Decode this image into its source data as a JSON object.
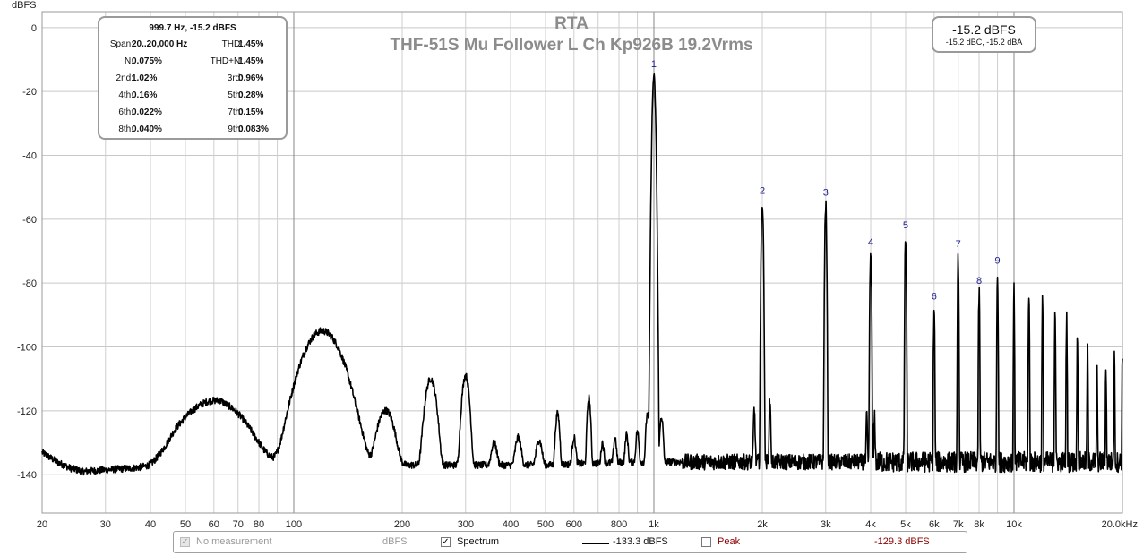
{
  "chart_data": {
    "type": "line",
    "title": "RTA",
    "subtitle": "THF-51S Mu Follower L Ch Kp926B 19.2Vrms",
    "ylabel": "dBFS",
    "xlabel": "",
    "x_scale": "log",
    "xlim": [
      20,
      20000
    ],
    "ylim": [
      -152,
      5
    ],
    "y_ticks": [
      0,
      -20,
      -40,
      -60,
      -80,
      -100,
      -120,
      -140
    ],
    "y_tick_labels": [
      "0",
      "-20",
      "-40",
      "-60",
      "-80",
      "-100",
      "-120",
      "-140"
    ],
    "x_ticks": [
      20,
      30,
      40,
      50,
      60,
      70,
      80,
      100,
      200,
      300,
      400,
      500,
      600,
      800,
      1000,
      2000,
      3000,
      4000,
      5000,
      6000,
      7000,
      8000,
      10000,
      20000
    ],
    "x_tick_labels": [
      "20",
      "30",
      "40",
      "50",
      "60",
      "70",
      "80",
      "100",
      "200",
      "300",
      "400",
      "500",
      "600",
      "800",
      "1k",
      "2k",
      "3k",
      "4k",
      "5k",
      "6k",
      "7k",
      "8k",
      "10k",
      "20.0kHz"
    ],
    "grid": true,
    "series": [
      {
        "name": "Spectrum",
        "color": "#000000",
        "noise_floor": [
          [
            20,
            -133
          ],
          [
            22,
            -136
          ],
          [
            24,
            -138
          ],
          [
            26,
            -139
          ],
          [
            30,
            -138.5
          ],
          [
            35,
            -138
          ],
          [
            40,
            -137.5
          ],
          [
            44,
            -135
          ],
          [
            47,
            -131
          ],
          [
            50,
            -131
          ],
          [
            53,
            -135
          ],
          [
            56,
            -134
          ],
          [
            63,
            -127
          ],
          [
            65,
            -137
          ],
          [
            70,
            -137.5
          ],
          [
            80,
            -137
          ],
          [
            88,
            -136
          ],
          [
            92,
            -134
          ],
          [
            95,
            -131
          ],
          [
            100,
            -133
          ],
          [
            105,
            -136
          ],
          [
            115,
            -137
          ],
          [
            130,
            -134
          ],
          [
            150,
            -136
          ],
          [
            200,
            -137
          ],
          [
            300,
            -137
          ],
          [
            500,
            -137
          ],
          [
            900,
            -136
          ],
          [
            1100,
            -136
          ],
          [
            2000,
            -136
          ],
          [
            5000,
            -136
          ],
          [
            20000,
            -136
          ]
        ],
        "peaks": [
          {
            "f": 60,
            "level": -117,
            "w": 0.07
          },
          {
            "f": 120,
            "level": -95,
            "w": 0.04
          },
          {
            "f": 150,
            "level": -130,
            "w": 0.02
          },
          {
            "f": 180,
            "level": -120,
            "w": 0.02
          },
          {
            "f": 240,
            "level": -110,
            "w": 0.012
          },
          {
            "f": 300,
            "level": -109,
            "w": 0.008
          },
          {
            "f": 360,
            "level": -131,
            "w": 0.008
          },
          {
            "f": 420,
            "level": -129,
            "w": 0.008
          },
          {
            "f": 480,
            "level": -130,
            "w": 0.008
          },
          {
            "f": 540,
            "level": -121,
            "w": 0.005
          },
          {
            "f": 600,
            "level": -129,
            "w": 0.005
          },
          {
            "f": 660,
            "level": -116,
            "w": 0.004
          },
          {
            "f": 720,
            "level": -131,
            "w": 0.004
          },
          {
            "f": 780,
            "level": -129,
            "w": 0.004
          },
          {
            "f": 840,
            "level": -128,
            "w": 0.004
          },
          {
            "f": 900,
            "level": -127,
            "w": 0.004
          },
          {
            "f": 960,
            "level": -121,
            "w": 0.004
          },
          {
            "f": 1000,
            "level": -15.2,
            "w": 0.0028
          },
          {
            "f": 1050,
            "level": -122,
            "w": 0.004
          },
          {
            "f": 1900,
            "level": -120,
            "w": 0.002
          },
          {
            "f": 2000,
            "level": -54.8,
            "w": 0.0018
          },
          {
            "f": 2100,
            "level": -118,
            "w": 0.002
          },
          {
            "f": 3000,
            "level": -55.4,
            "w": 0.0015
          },
          {
            "f": 3900,
            "level": -122,
            "w": 0.0015
          },
          {
            "f": 4000,
            "level": -71,
            "w": 0.0014
          },
          {
            "f": 4100,
            "level": -122,
            "w": 0.0015
          },
          {
            "f": 5000,
            "level": -65.6,
            "w": 0.0012
          },
          {
            "f": 6000,
            "level": -88,
            "w": 0.0011
          },
          {
            "f": 7000,
            "level": -71.5,
            "w": 0.001
          },
          {
            "f": 8000,
            "level": -83,
            "w": 0.001
          },
          {
            "f": 9000,
            "level": -76.7,
            "w": 0.001
          },
          {
            "f": 10000,
            "level": -83,
            "w": 0.0009
          },
          {
            "f": 11000,
            "level": -82,
            "w": 0.0009
          },
          {
            "f": 12000,
            "level": -86,
            "w": 0.0009
          },
          {
            "f": 13000,
            "level": -88,
            "w": 0.0009
          },
          {
            "f": 14000,
            "level": -91,
            "w": 0.0009
          },
          {
            "f": 15000,
            "level": -97,
            "w": 0.0009
          },
          {
            "f": 16000,
            "level": -101,
            "w": 0.0009
          },
          {
            "f": 17000,
            "level": -108,
            "w": 0.0009
          },
          {
            "f": 18000,
            "level": -106,
            "w": 0.0009
          },
          {
            "f": 19000,
            "level": -104,
            "w": 0.0009
          },
          {
            "f": 20000,
            "level": -103,
            "w": 0.0009
          }
        ]
      }
    ],
    "harmonic_labels": [
      {
        "label": "1",
        "f": 1000,
        "level": -15.2
      },
      {
        "label": "2",
        "f": 2000,
        "level": -54.8
      },
      {
        "label": "3",
        "f": 3000,
        "level": -55.4
      },
      {
        "label": "4",
        "f": 4000,
        "level": -71
      },
      {
        "label": "5",
        "f": 5000,
        "level": -65.6
      },
      {
        "label": "6",
        "f": 6000,
        "level": -88
      },
      {
        "label": "7",
        "f": 7000,
        "level": -71.5
      },
      {
        "label": "8",
        "f": 8000,
        "level": -83
      },
      {
        "label": "9",
        "f": 9000,
        "level": -76.7
      }
    ]
  },
  "stats_box": {
    "header": "999.7 Hz, -15.2 dBFS",
    "rows": [
      {
        "l1": "Span:",
        "v1": "20..20,000 Hz",
        "l2": "THD:",
        "v2": "1.45%"
      },
      {
        "l1": "N:",
        "v1": "0.075%",
        "l2": "THD+N:",
        "v2": "1.45%"
      },
      {
        "l1": "2nd:",
        "v1": "1.02%",
        "l2": "3rd:",
        "v2": "0.96%"
      },
      {
        "l1": "4th:",
        "v1": "0.16%",
        "l2": "5th:",
        "v2": "0.28%"
      },
      {
        "l1": "6th:",
        "v1": "0.022%",
        "l2": "7th:",
        "v2": "0.15%"
      },
      {
        "l1": "8th:",
        "v1": "0.040%",
        "l2": "9th:",
        "v2": "0.083%"
      }
    ]
  },
  "level_box": {
    "main": "-15.2 dBFS",
    "sub": "-15.2 dBC, -15.2 dBA"
  },
  "legend": {
    "no_measurement_label": "No measurement",
    "no_measurement_unit": "dBFS",
    "spectrum_label": "Spectrum",
    "spectrum_checked": true,
    "spectrum_value": "-133.3 dBFS",
    "peak_label": "Peak",
    "peak_checked": false,
    "peak_value": "-129.3 dBFS",
    "peak_color": "#8b0000"
  }
}
